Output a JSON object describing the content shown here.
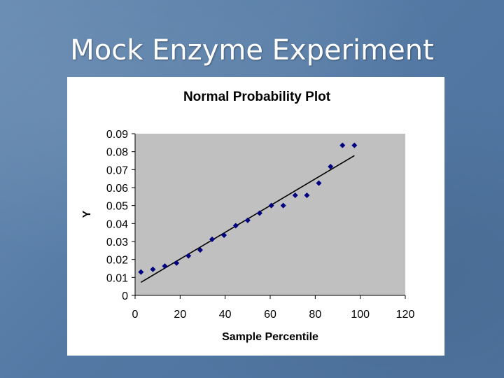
{
  "slide": {
    "title": "Mock Enzyme Experiment"
  },
  "colors": {
    "background": "#5a7fa8",
    "plot_area": "#c0c0c0",
    "point": "#000080",
    "trendline": "#000000"
  },
  "chart_data": {
    "type": "scatter",
    "title": "Normal Probability Plot",
    "xlabel": "Sample Percentile",
    "ylabel": "Y",
    "xlim": [
      0,
      120
    ],
    "ylim": [
      0,
      0.09
    ],
    "xticks": [
      "0",
      "20",
      "40",
      "60",
      "80",
      "100",
      "120"
    ],
    "yticks": [
      "0",
      "0.01",
      "0.02",
      "0.03",
      "0.04",
      "0.05",
      "0.06",
      "0.07",
      "0.08",
      "0.09"
    ],
    "grid": false,
    "legend": "none",
    "points": [
      {
        "x": 2.6,
        "y": 0.013
      },
      {
        "x": 7.9,
        "y": 0.0145
      },
      {
        "x": 13.2,
        "y": 0.0163
      },
      {
        "x": 18.4,
        "y": 0.018
      },
      {
        "x": 23.7,
        "y": 0.022
      },
      {
        "x": 28.9,
        "y": 0.0253
      },
      {
        "x": 34.2,
        "y": 0.0312
      },
      {
        "x": 39.5,
        "y": 0.0335
      },
      {
        "x": 44.7,
        "y": 0.0388
      },
      {
        "x": 50.0,
        "y": 0.0418
      },
      {
        "x": 55.3,
        "y": 0.0458
      },
      {
        "x": 60.5,
        "y": 0.05
      },
      {
        "x": 65.8,
        "y": 0.05
      },
      {
        "x": 71.1,
        "y": 0.0557
      },
      {
        "x": 76.3,
        "y": 0.0557
      },
      {
        "x": 81.6,
        "y": 0.0625
      },
      {
        "x": 86.8,
        "y": 0.0717
      },
      {
        "x": 92.1,
        "y": 0.0835
      },
      {
        "x": 97.4,
        "y": 0.0835
      }
    ],
    "trendline": {
      "x": [
        2.6,
        97.4
      ],
      "y": [
        0.0073,
        0.0778
      ]
    }
  }
}
